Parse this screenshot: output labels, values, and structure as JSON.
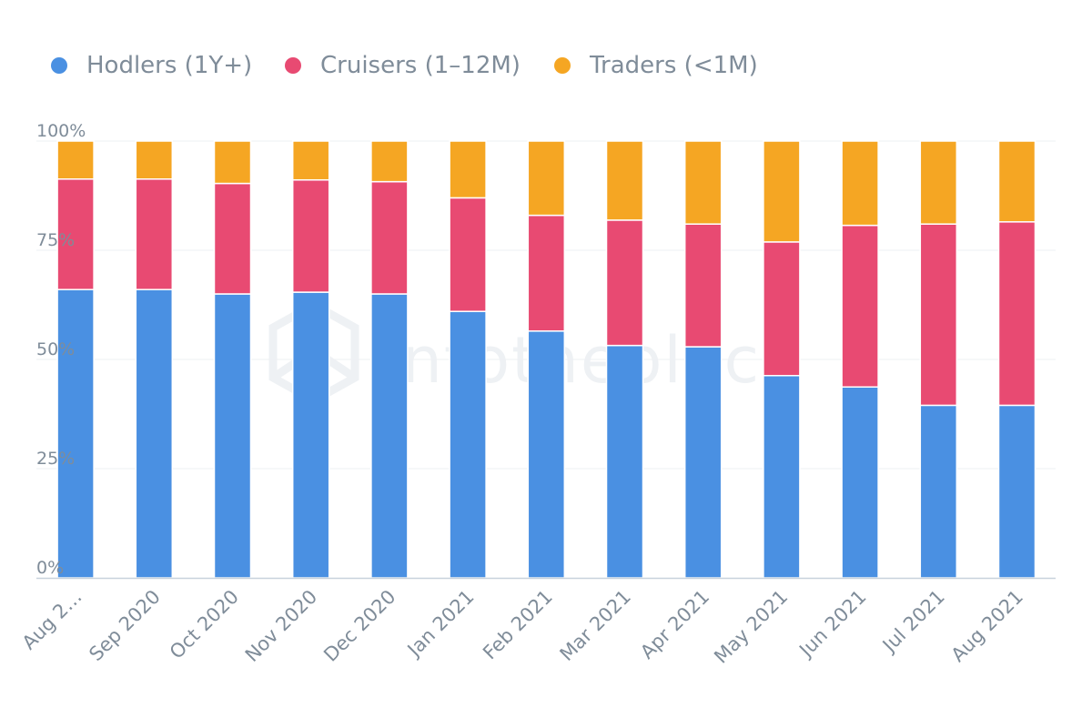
{
  "chart_data": {
    "type": "bar",
    "stacked": true,
    "percent": true,
    "categories": [
      "Aug 2…",
      "Sep 2020",
      "Oct 2020",
      "Nov 2020",
      "Dec 2020",
      "Jan 2021",
      "Feb 2021",
      "Mar 2021",
      "Apr 2021",
      "May 2021",
      "Jun 2021",
      "Jul 2021",
      "Aug 2021"
    ],
    "series": [
      {
        "name": "Hodlers (1Y+)",
        "color": "#4a90e2",
        "values": [
          66,
          66,
          65,
          65.4,
          65,
          61,
          56.5,
          53.2,
          52.9,
          46.3,
          43.7,
          39.5,
          39.5
        ]
      },
      {
        "name": "Cruisers (1–12M)",
        "color": "#e84a72",
        "values": [
          25.3,
          25.3,
          25.3,
          25.7,
          25.7,
          26,
          26.5,
          28.7,
          28.1,
          30.6,
          37,
          41.5,
          42
        ]
      },
      {
        "name": "Traders (<1M)",
        "color": "#f5a623",
        "values": [
          8.7,
          8.7,
          9.7,
          8.9,
          9.3,
          13,
          17,
          18.1,
          19,
          23.1,
          19.3,
          19,
          18.5
        ]
      }
    ],
    "yticks": [
      "0%",
      "25%",
      "50%",
      "75%",
      "100%"
    ],
    "ylim": [
      0,
      100
    ],
    "legend_position": "top-left",
    "grid": true
  },
  "watermark": "intotheblock"
}
